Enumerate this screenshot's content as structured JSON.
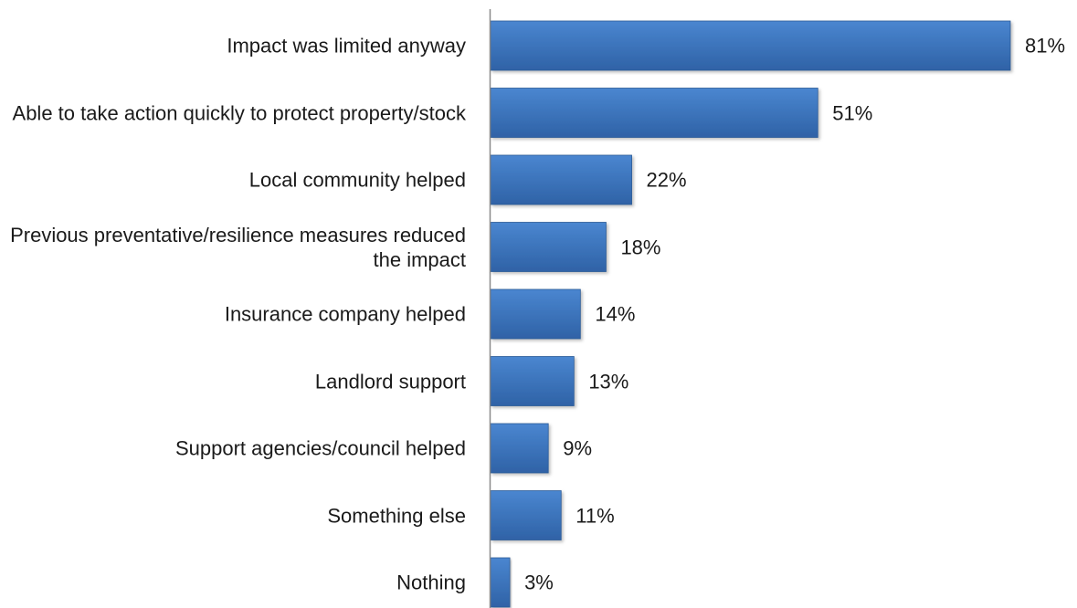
{
  "chart_data": {
    "type": "bar",
    "orientation": "horizontal",
    "categories": [
      "Impact was limited anyway",
      "Able to take action quickly to protect property/stock",
      "Local community helped",
      "Previous preventative/resilience measures reduced the impact",
      "Insurance company helped",
      "Landlord support",
      "Support agencies/council helped",
      "Something else",
      "Nothing"
    ],
    "values": [
      81,
      51,
      22,
      18,
      14,
      13,
      9,
      11,
      3
    ],
    "value_labels": [
      "81%",
      "51%",
      "22%",
      "18%",
      "14%",
      "13%",
      "9%",
      "11%",
      "3%"
    ],
    "title": "",
    "xlabel": "",
    "ylabel": "",
    "xlim": [
      0,
      81
    ],
    "grid": false,
    "legend": "none",
    "colors": {
      "bar_top": "#4a86d0",
      "bar_bottom": "#2f62a6",
      "bar_edge": "#2b5a96",
      "axis": "#8a8a8a"
    }
  }
}
